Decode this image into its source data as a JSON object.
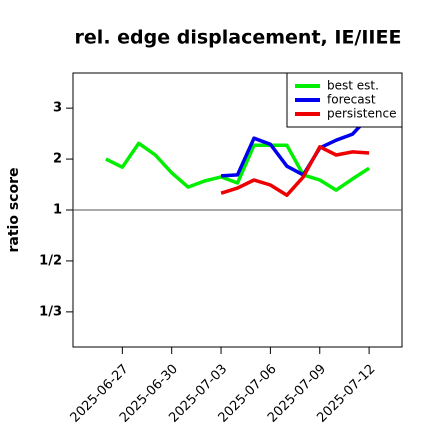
{
  "chart_data": {
    "type": "line",
    "title": "rel. edge displacement, IE/IIEE",
    "y_label": "ratio score",
    "yscale": "ratio",
    "ylim": [
      0.271,
      3.69
    ],
    "yticks": [
      3,
      2,
      1,
      {
        "value": 0.5,
        "label": "1/2"
      },
      {
        "value": 0.3333,
        "label": "1/3"
      }
    ],
    "reference_line": 1,
    "xlim": [
      "2025-06-24",
      "2025-07-14"
    ],
    "xticks": [
      "2025-06-27",
      "2025-06-30",
      "2025-07-03",
      "2025-07-06",
      "2025-07-09",
      "2025-07-12"
    ],
    "highlight_xtick": "2025-07-03",
    "highlight_color": "#228b22",
    "legend": "upper right",
    "series": [
      {
        "name": "best est.",
        "color": "#00ee00",
        "x": [
          "2025-06-26",
          "2025-06-27",
          "2025-06-28",
          "2025-06-29",
          "2025-06-30",
          "2025-07-01",
          "2025-07-02",
          "2025-07-03",
          "2025-07-04",
          "2025-07-05",
          "2025-07-06",
          "2025-07-07",
          "2025-07-08",
          "2025-07-09",
          "2025-07-10",
          "2025-07-11",
          "2025-07-12"
        ],
        "values": [
          2.0,
          1.84,
          2.31,
          2.08,
          1.73,
          1.45,
          1.57,
          1.65,
          1.53,
          2.27,
          2.27,
          2.27,
          1.69,
          1.59,
          1.39,
          1.61,
          1.82
        ]
      },
      {
        "name": "forecast",
        "color": "#0000ee",
        "x": [
          "2025-07-03",
          "2025-07-04",
          "2025-07-05",
          "2025-07-06",
          "2025-07-07",
          "2025-07-08",
          "2025-07-09",
          "2025-07-10",
          "2025-07-11",
          "2025-07-12"
        ],
        "values": [
          1.67,
          1.69,
          2.41,
          2.29,
          1.86,
          1.69,
          2.22,
          2.37,
          2.49,
          2.84
        ]
      },
      {
        "name": "persistence",
        "color": "#ee0000",
        "x": [
          "2025-07-03",
          "2025-07-04",
          "2025-07-05",
          "2025-07-06",
          "2025-07-07",
          "2025-07-08",
          "2025-07-09",
          "2025-07-10",
          "2025-07-11",
          "2025-07-12"
        ],
        "values": [
          1.33,
          1.43,
          1.59,
          1.49,
          1.29,
          1.65,
          2.24,
          2.08,
          2.14,
          2.12
        ]
      }
    ]
  }
}
